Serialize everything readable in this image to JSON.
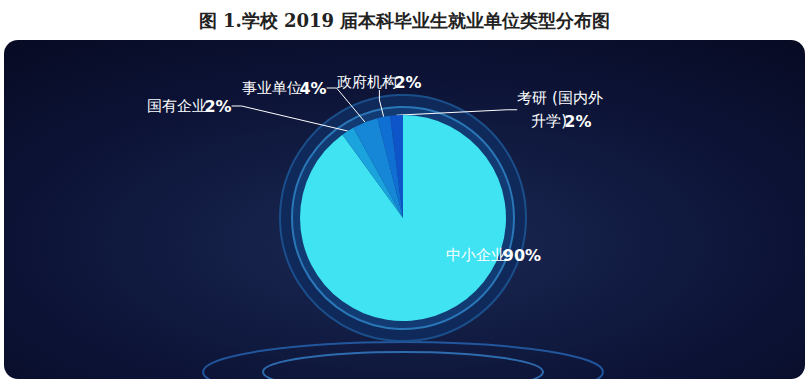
{
  "chart_data": {
    "type": "pie",
    "title": "图 1.学校 2019 届本科毕业生就业单位类型分布图",
    "categories": [
      "中小企业",
      "国有企业",
      "事业单位",
      "政府机构",
      "考研 (国内外升学)"
    ],
    "values": [
      90,
      2,
      4,
      2,
      2
    ],
    "value_labels": [
      "90%",
      "2%",
      "4%",
      "2%",
      "2%"
    ],
    "colors": [
      "#3fe3f2",
      "#1aa3dc",
      "#1687d6",
      "#106fd2",
      "#0d55c8"
    ],
    "data_labels": true
  }
}
